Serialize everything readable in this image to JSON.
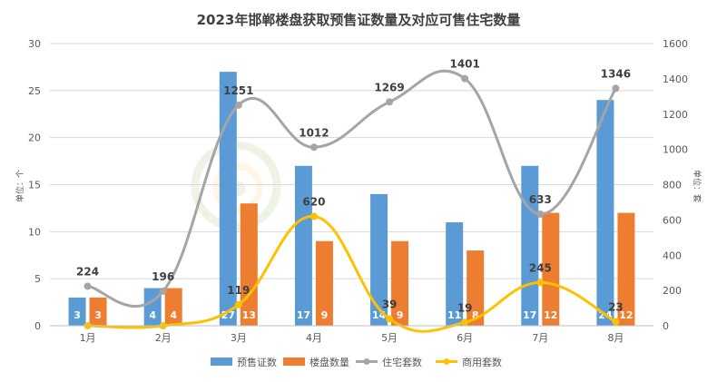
{
  "chart_data": {
    "type": "bar",
    "title": "2023年邯郸楼盘获取预售证数量及对应可售住宅数量",
    "categories": [
      "1月",
      "2月",
      "3月",
      "4月",
      "5月",
      "6月",
      "7月",
      "8月"
    ],
    "ylabel_left": "单位：个",
    "ylabel_right": "单位：套",
    "ylim_left": [
      0,
      30
    ],
    "ylim_right": [
      0,
      1600
    ],
    "yticks_left": [
      "0",
      "5",
      "10",
      "15",
      "20",
      "25",
      "30"
    ],
    "yticks_right": [
      "0",
      "200",
      "400",
      "600",
      "800",
      "1000",
      "1200",
      "1400",
      "1600"
    ],
    "grid": true,
    "legend_position": "bottom",
    "series": [
      {
        "name": "预售证数",
        "kind": "bar",
        "axis": "left",
        "color": "#5B9BD5",
        "values": [
          3,
          4,
          27,
          17,
          14,
          11,
          17,
          24
        ]
      },
      {
        "name": "楼盘数量",
        "kind": "bar",
        "axis": "left",
        "color": "#ED7D31",
        "values": [
          3,
          4,
          13,
          9,
          9,
          8,
          12,
          12
        ]
      },
      {
        "name": "住宅套数",
        "kind": "line",
        "axis": "right",
        "color": "#A5A5A5",
        "values": [
          224,
          196,
          1251,
          1012,
          1269,
          1401,
          633,
          1346
        ]
      },
      {
        "name": "商用套数",
        "kind": "line",
        "axis": "right",
        "color": "#FFC000",
        "values": [
          0,
          0,
          119,
          620,
          39,
          19,
          245,
          23
        ]
      }
    ]
  }
}
